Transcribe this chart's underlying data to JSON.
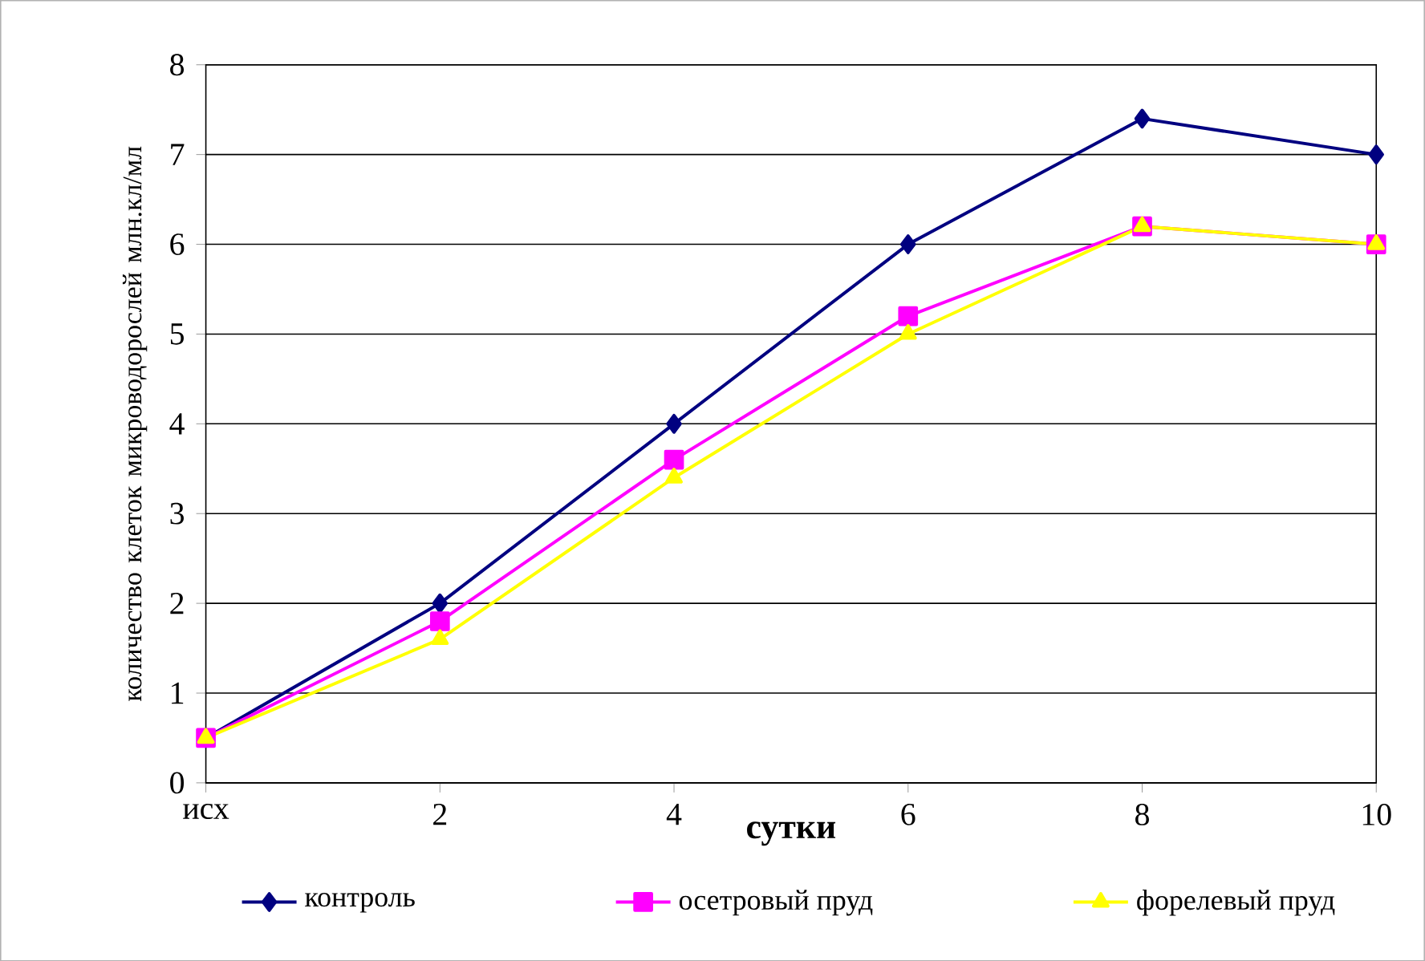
{
  "chart_data": {
    "type": "line",
    "xlabel": "сутки",
    "ylabel": "количество клеток микроводорослей млн.кл/мл",
    "categories": [
      "исх",
      "2",
      "4",
      "6",
      "8",
      "10"
    ],
    "series": [
      {
        "name": "контроль",
        "color": "#000080",
        "marker": "diamond",
        "values": [
          0.5,
          2,
          4,
          6,
          7.4,
          7
        ]
      },
      {
        "name": "осетровый пруд",
        "color": "#ff00ff",
        "marker": "square",
        "values": [
          0.5,
          1.8,
          3.6,
          5.2,
          6.2,
          6
        ]
      },
      {
        "name": "форелевый пруд",
        "color": "#ffff00",
        "marker": "triangle",
        "values": [
          0.5,
          1.6,
          3.4,
          5.0,
          6.2,
          6.0
        ]
      }
    ],
    "ylim": [
      0,
      8
    ],
    "yticks": [
      0,
      1,
      2,
      3,
      4,
      5,
      6,
      7,
      8
    ],
    "grid": "y",
    "legend": "bottom"
  }
}
